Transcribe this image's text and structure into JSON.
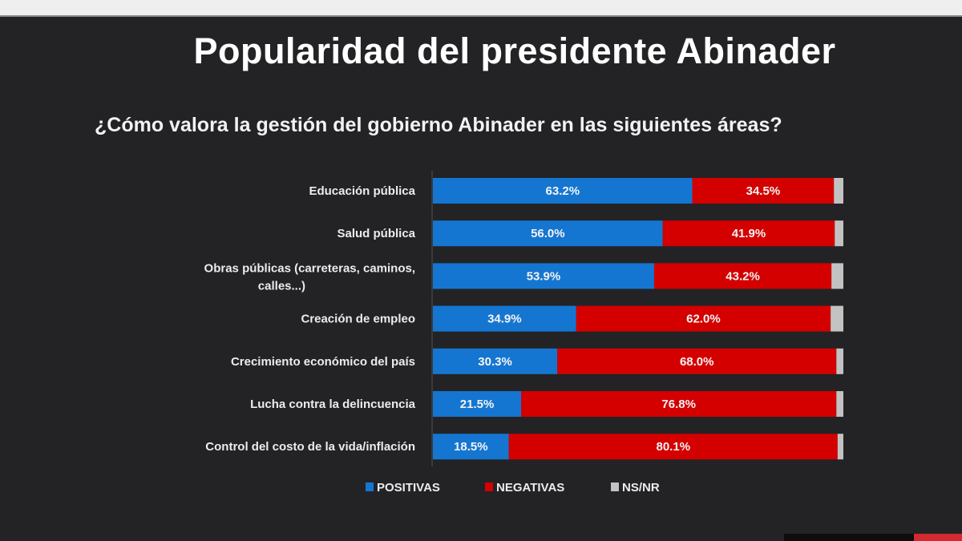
{
  "chart_data": {
    "type": "bar",
    "orientation": "horizontal-stacked",
    "title": "Popularidad del presidente Abinader",
    "subtitle": "¿Cómo valora la gestión del gobierno Abinader en las siguientes áreas?",
    "categories": [
      [
        "Educación pública"
      ],
      [
        "Salud pública"
      ],
      [
        "Obras públicas (carreteras, caminos,",
        "calles...)"
      ],
      [
        "Creación de empleo"
      ],
      [
        "Crecimiento económico del país"
      ],
      [
        "Lucha contra la delincuencia"
      ],
      [
        "Control del costo de la vida/inflación"
      ]
    ],
    "series": [
      {
        "name": "POSITIVAS",
        "color": "#1576d1",
        "values": [
          63.2,
          56.0,
          53.9,
          34.9,
          30.3,
          21.5,
          18.5
        ],
        "labels": [
          "63.2%",
          "56.0%",
          "53.9%",
          "34.9%",
          "30.3%",
          "21.5%",
          "18.5%"
        ]
      },
      {
        "name": "NEGATIVAS",
        "color": "#d40000",
        "values": [
          34.5,
          41.9,
          43.2,
          62.0,
          68.0,
          76.8,
          80.1
        ],
        "labels": [
          "34.5%",
          "41.9%",
          "43.2%",
          "62.0%",
          "68.0%",
          "76.8%",
          "80.1%"
        ]
      },
      {
        "name": "NS/NR",
        "color": "#c2c2c2",
        "values": [
          2.3,
          2.1,
          2.9,
          3.1,
          1.7,
          1.7,
          1.4
        ],
        "labels": [
          "",
          "",
          "",
          "",
          "",
          "",
          ""
        ]
      }
    ],
    "xlim": [
      0,
      100
    ],
    "grid": false,
    "legend_position": "bottom"
  }
}
